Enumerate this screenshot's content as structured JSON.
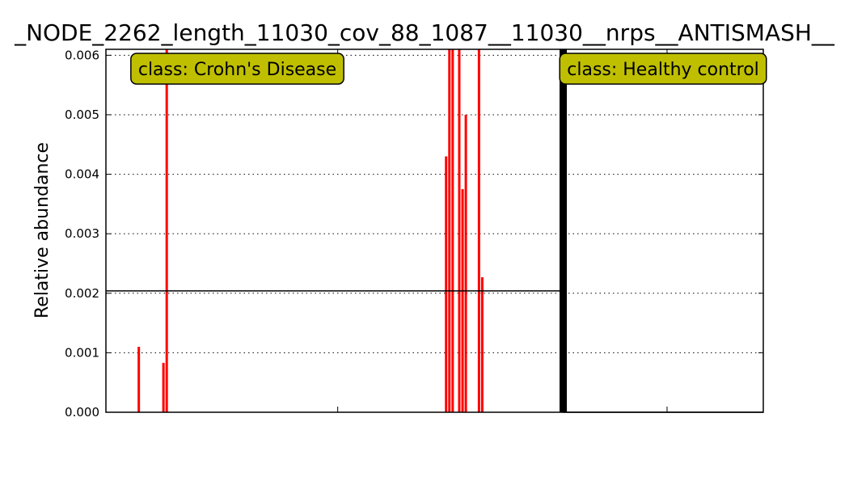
{
  "chart_data": {
    "type": "bar",
    "title": "_NODE_2262_length_11030_cov_88_1087__11030__nrps__ANTISMASH__",
    "xlabel": "",
    "ylabel": "Relative abundance",
    "ylim": [
      0,
      0.0061
    ],
    "yticks": [
      "0.000",
      "0.001",
      "0.002",
      "0.003",
      "0.004",
      "0.005",
      "0.006"
    ],
    "grid": "y-dotted",
    "n_samples": 200,
    "classes": [
      {
        "name": "class: Crohn's Disease",
        "start": 0,
        "end": 139,
        "color": "#ff0000",
        "mean": 0.00204
      },
      {
        "name": "class: Healthy control",
        "start": 139,
        "end": 200,
        "color": "#000000",
        "mean": 0
      }
    ],
    "label_box_color": "#bfbf00",
    "series": [
      {
        "name": "",
        "values": [
          {
            "x": 10,
            "y": 0.0011
          },
          {
            "x": 17.5,
            "y": 0.00083
          },
          {
            "x": 18.5,
            "y": 0.0061
          },
          {
            "x": 103.5,
            "y": 0.0043
          },
          {
            "x": 104.5,
            "y": 0.0061
          },
          {
            "x": 105.5,
            "y": 0.0061
          },
          {
            "x": 107.5,
            "y": 0.0061
          },
          {
            "x": 108.5,
            "y": 0.00375
          },
          {
            "x": 109.5,
            "y": 0.005
          },
          {
            "x": 113.5,
            "y": 0.0061
          },
          {
            "x": 114.5,
            "y": 0.00227
          }
        ]
      }
    ]
  }
}
